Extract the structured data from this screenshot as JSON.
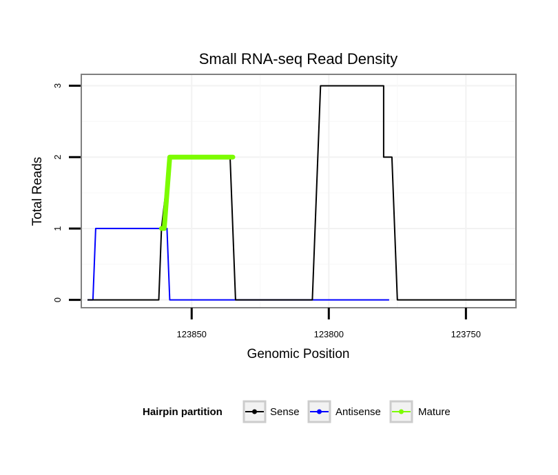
{
  "chart_data": {
    "type": "line",
    "title": "Small RNA-seq Read Density",
    "xlabel": "Genomic Position",
    "ylabel": "Total Reads",
    "x_reversed": true,
    "xlim": [
      123890,
      123732
    ],
    "ylim": [
      -0.1,
      3.15
    ],
    "x_ticks": [
      123850,
      123800,
      123750
    ],
    "x_tick_labels": [
      "123850",
      "123800",
      "123750"
    ],
    "y_ticks": [
      0,
      1,
      2,
      3
    ],
    "y_tick_labels": [
      "0",
      "1",
      "2",
      "3"
    ],
    "grid": true,
    "legend": {
      "title": "Hairpin partition",
      "position": "bottom",
      "entries": [
        {
          "label": "Sense",
          "color": "#000000"
        },
        {
          "label": "Antisense",
          "color": "#0000ff"
        },
        {
          "label": "Mature",
          "color": "#7cfc00"
        }
      ]
    },
    "series": [
      {
        "name": "Sense",
        "color": "#000000",
        "x": [
          123888,
          123862,
          123861,
          123858,
          123836,
          123834,
          123808,
          123806,
          123803,
          123783,
          123780,
          123780,
          123778,
          123777,
          123775,
          123758,
          123732
        ],
        "y": [
          0,
          0,
          1,
          2,
          2,
          0,
          0,
          0,
          3,
          3,
          3,
          2,
          2,
          2,
          0,
          0,
          0
        ]
      },
      {
        "name": "Antisense",
        "color": "#0000ff",
        "x": [
          123888,
          123886,
          123885,
          123859,
          123858,
          123832,
          123805,
          123778
        ],
        "y": [
          0,
          0,
          1,
          1,
          0,
          0,
          0,
          0
        ]
      },
      {
        "name": "Mature",
        "color": "#7cfc00",
        "x": [
          123861,
          123860,
          123858,
          123835
        ],
        "y": [
          1,
          1,
          2,
          2
        ]
      }
    ]
  }
}
